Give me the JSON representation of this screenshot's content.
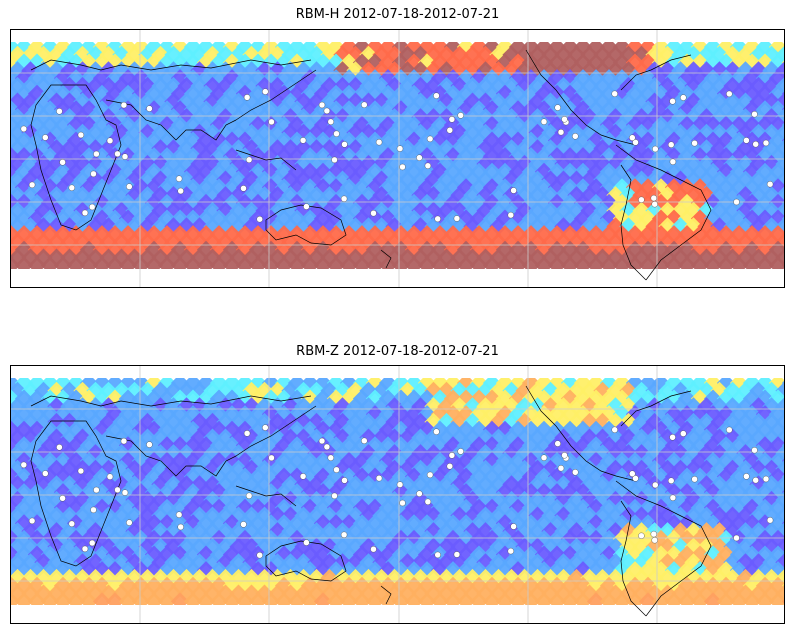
{
  "panels": [
    {
      "title": "RBM-H 2012-07-18-2012-07-21",
      "field": "rbm-h",
      "colors": {
        "low": "#6a5cff",
        "mid_low": "#5aa8ff",
        "mid": "#5fefff",
        "mid_high": "#ffef66",
        "high": "#ff6a4a",
        "max": "#b06060"
      }
    },
    {
      "title": "RBM-Z 2012-07-18-2012-07-21",
      "field": "rbm-z",
      "colors": {
        "low": "#6a5cff",
        "mid_low": "#5aa8ff",
        "mid": "#5fefff",
        "mid_high": "#ffef66",
        "high": "#ffb060",
        "max": "#ffa060"
      }
    }
  ],
  "map_style": {
    "coastline_color": "#000000",
    "grid_color": "#cccccc",
    "station_marker_color": "#ffffff"
  }
}
